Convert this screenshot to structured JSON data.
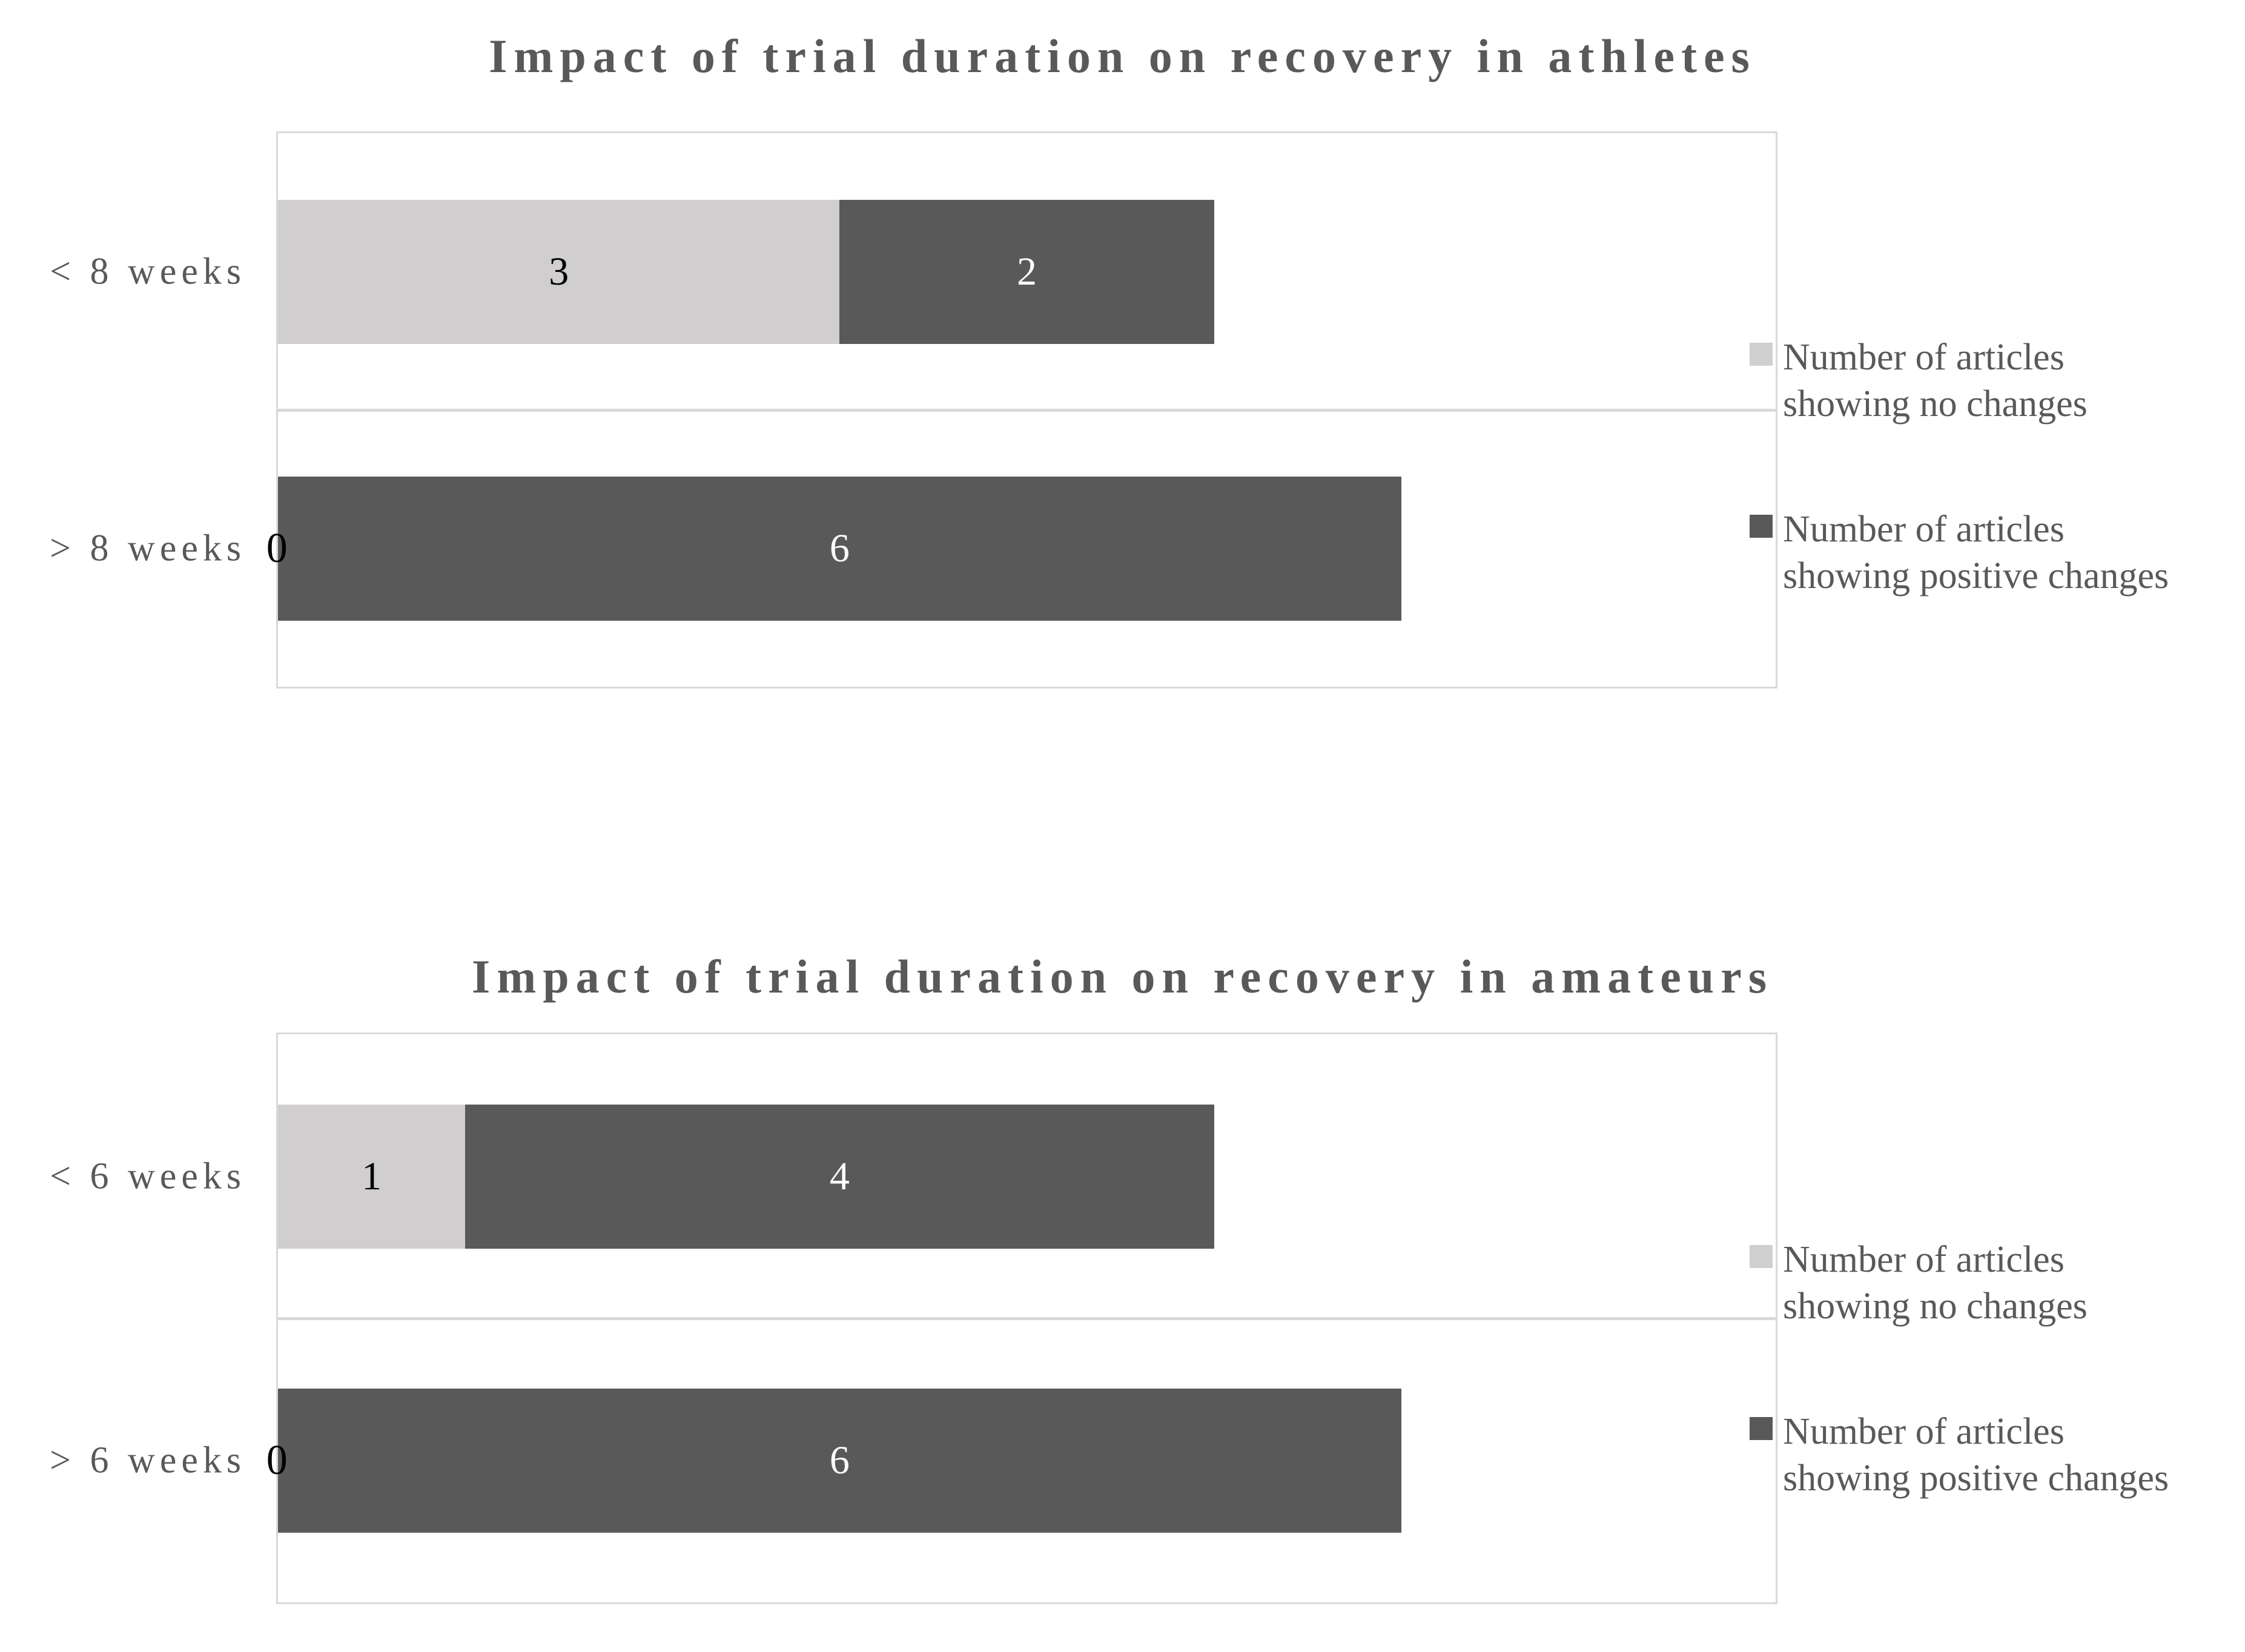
{
  "figure": {
    "background": "#ffffff",
    "styles": {
      "grid_color": "#d9d9d9",
      "title_color": "#595959",
      "category_label_color": "#595959",
      "legend_text_color": "#595959"
    }
  },
  "chart_data": [
    {
      "type": "bar",
      "orientation": "horizontal",
      "stacked": true,
      "title": "Impact of trial duration on recovery in athletes",
      "categories": [
        "< 8 weeks",
        "> 8 weeks"
      ],
      "series": [
        {
          "name": "Number of articles showing no changes",
          "label_lines": [
            "Number of articles",
            "showing no changes"
          ],
          "color": "#d0cece",
          "text_color": "#000000",
          "values": [
            3,
            0
          ]
        },
        {
          "name": "Number of articles showing positive changes",
          "label_lines": [
            "Number of articles",
            "showing positive changes"
          ],
          "color": "#595959",
          "text_color": "#ffffff",
          "values": [
            2,
            6
          ]
        }
      ],
      "xlabel": "",
      "ylabel": "",
      "xlim": [
        0,
        8
      ],
      "grid": true,
      "legend_position": "right"
    },
    {
      "type": "bar",
      "orientation": "horizontal",
      "stacked": true,
      "title": "Impact of trial duration on recovery in amateurs",
      "categories": [
        "< 6 weeks",
        "> 6 weeks"
      ],
      "series": [
        {
          "name": "Number of articles showing no changes",
          "label_lines": [
            "Number of articles",
            "showing no changes"
          ],
          "color": "#d0cece",
          "text_color": "#000000",
          "values": [
            1,
            0
          ]
        },
        {
          "name": "Number of articles showing positive changes",
          "label_lines": [
            "Number of articles",
            "showing positive changes"
          ],
          "color": "#595959",
          "text_color": "#ffffff",
          "values": [
            4,
            6
          ]
        }
      ],
      "xlabel": "",
      "ylabel": "",
      "xlim": [
        0,
        8
      ],
      "grid": true,
      "legend_position": "right"
    }
  ]
}
